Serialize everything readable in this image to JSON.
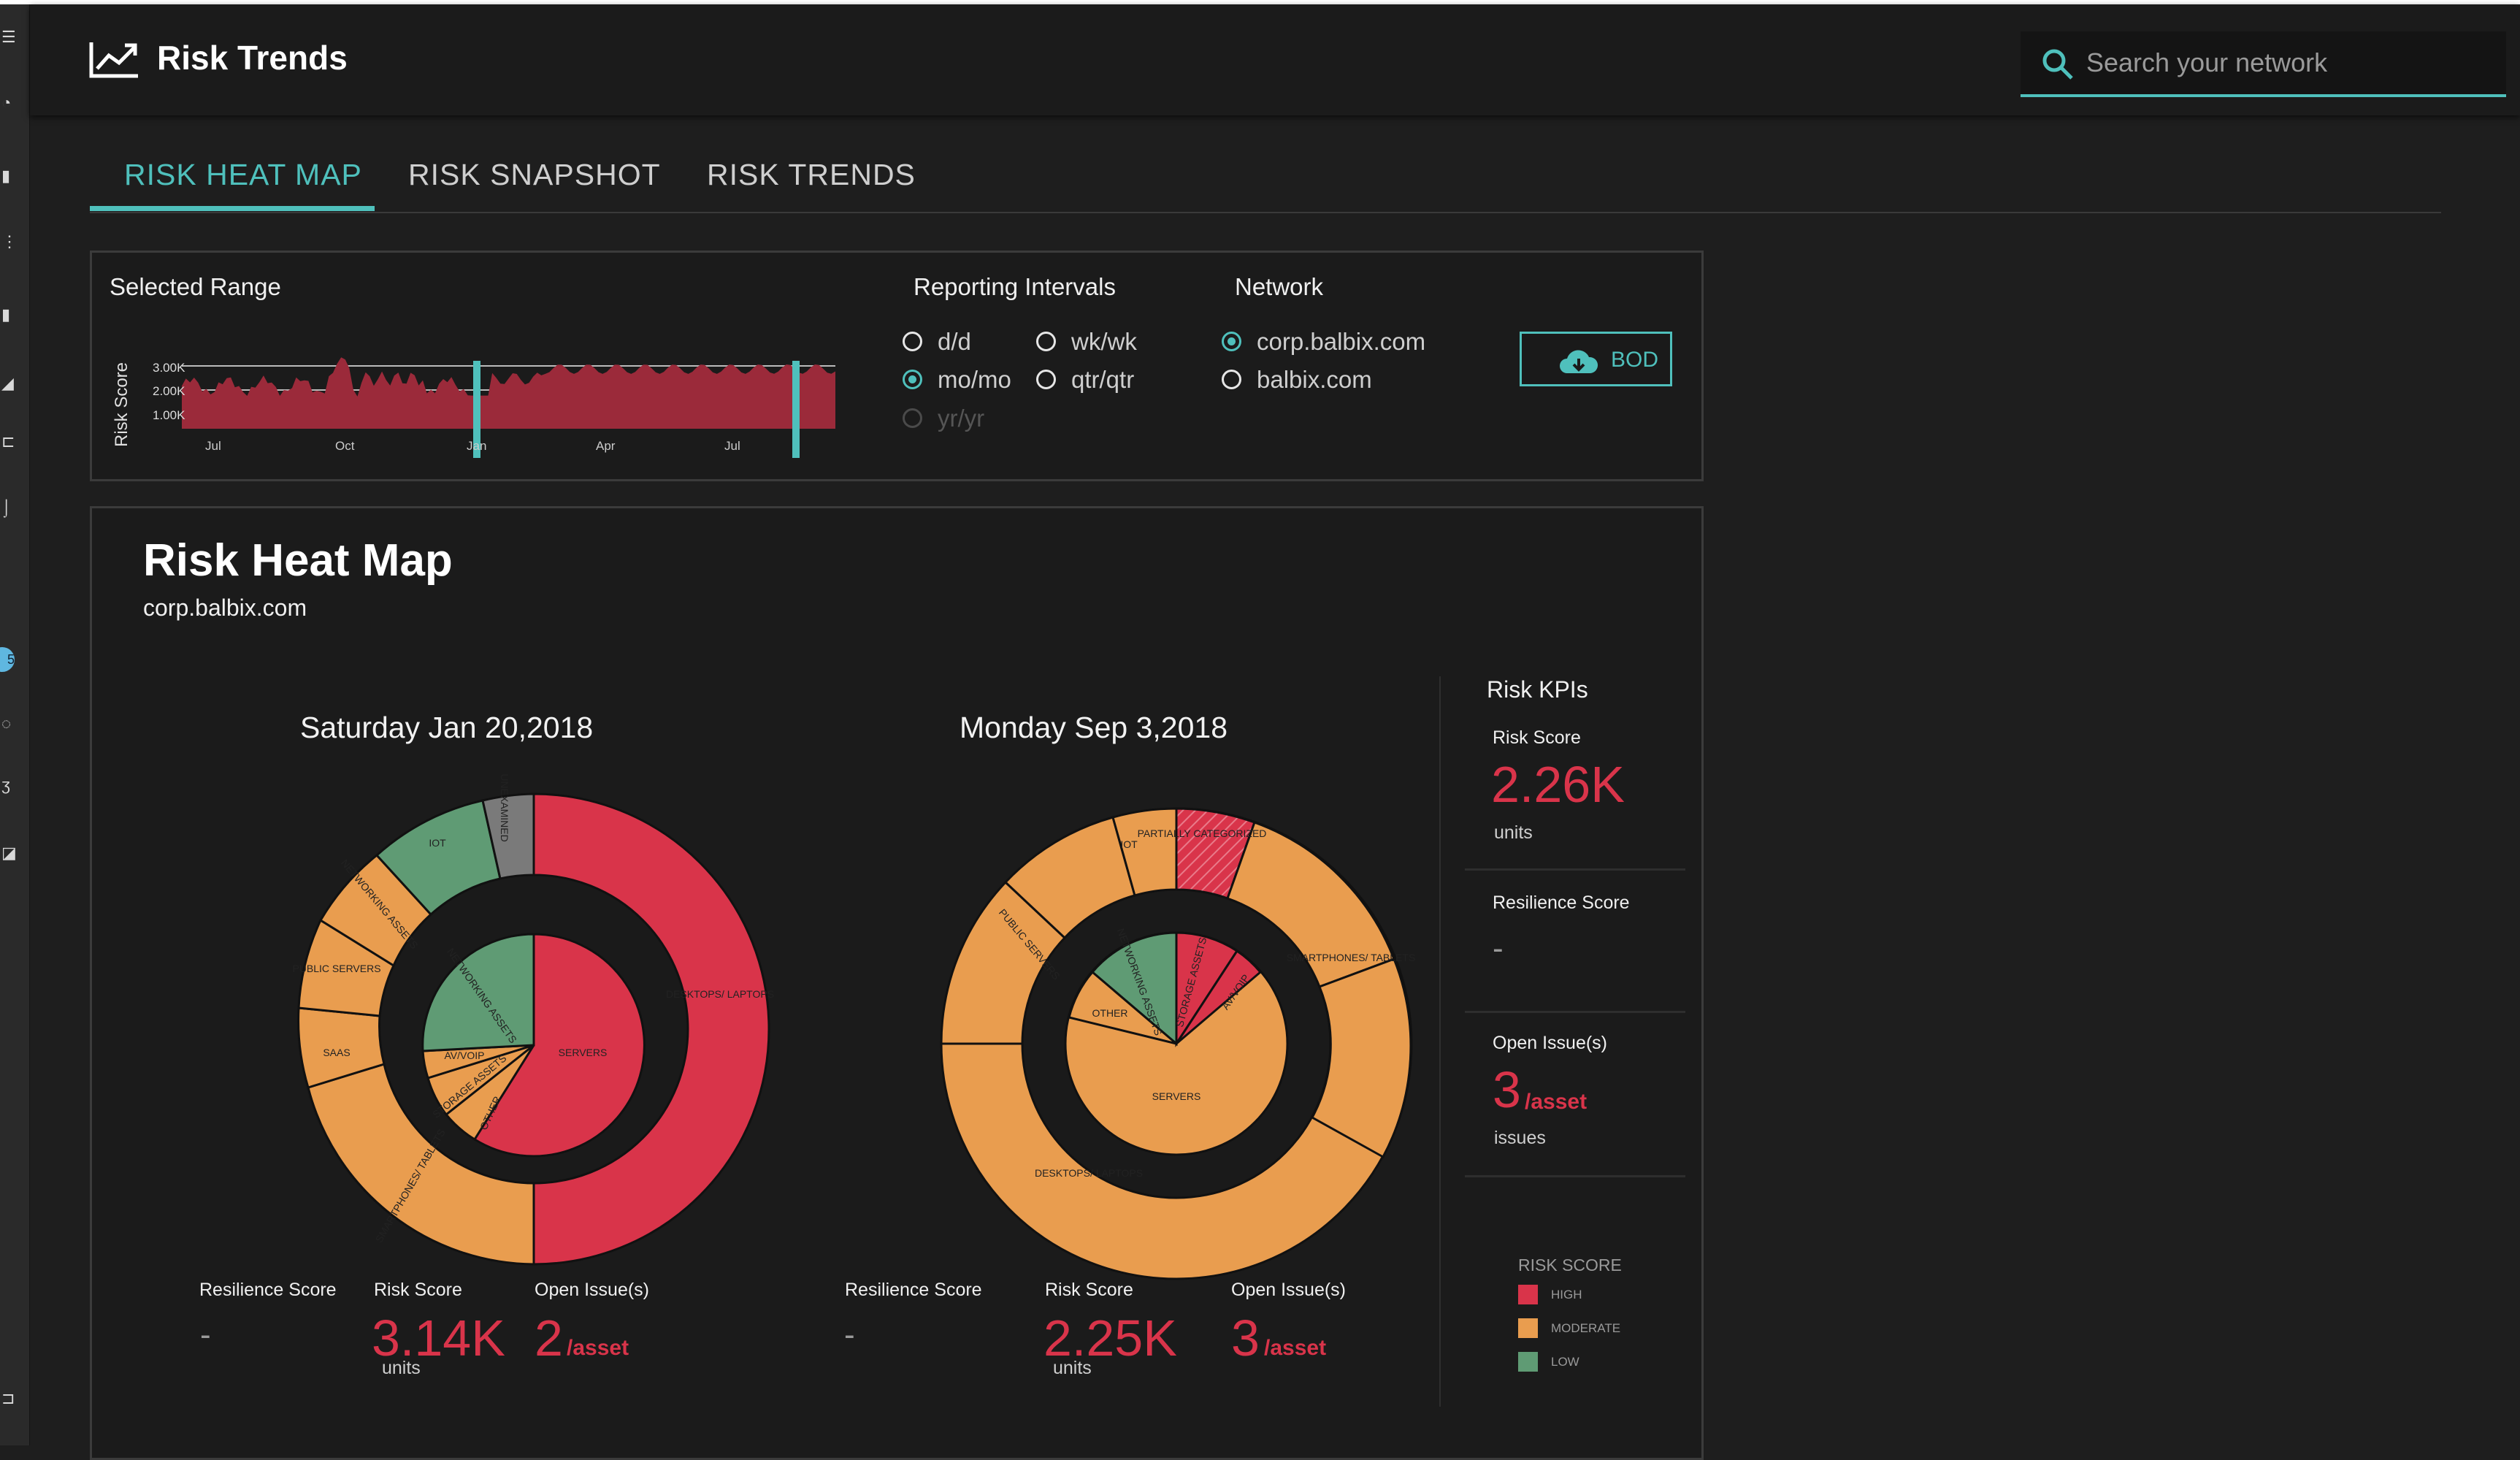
{
  "header": {
    "title": "Risk Trends",
    "search_placeholder": "Search your network"
  },
  "tabs": [
    {
      "label": "RISK HEAT MAP",
      "active": true
    },
    {
      "label": "RISK SNAPSHOT",
      "active": false
    },
    {
      "label": "RISK TRENDS",
      "active": false
    }
  ],
  "range_panel": {
    "selected_range_label": "Selected Range",
    "reporting_intervals_label": "Reporting Intervals",
    "network_label": "Network",
    "intervals": [
      {
        "label": "d/d",
        "selected": false,
        "disabled": false
      },
      {
        "label": "wk/wk",
        "selected": false,
        "disabled": false
      },
      {
        "label": "mo/mo",
        "selected": true,
        "disabled": false
      },
      {
        "label": "qtr/qtr",
        "selected": false,
        "disabled": false
      },
      {
        "label": "yr/yr",
        "selected": false,
        "disabled": true
      }
    ],
    "networks": [
      {
        "label": "corp.balbix.com",
        "selected": true
      },
      {
        "label": "balbix.com",
        "selected": false
      }
    ],
    "download_button": "BOD"
  },
  "chart_data": {
    "type": "area",
    "ylabel": "Risk Score",
    "y_ticks": [
      "1.00K",
      "2.00K",
      "3.00K"
    ],
    "x_ticks": [
      "Jul",
      "Oct",
      "Jan",
      "Apr",
      "Jul"
    ],
    "ylim": [
      0,
      3000
    ],
    "series_color": "#9b2a3a",
    "selection_start": "Jan",
    "selection_end": "Jul"
  },
  "heat_map": {
    "title": "Risk Heat Map",
    "subtitle": "corp.balbix.com",
    "snapshots": [
      {
        "date": "Saturday Jan 20,2018",
        "resilience_label": "Resilience Score",
        "resilience_value": "-",
        "risk_label": "Risk Score",
        "risk_value": "3.14K",
        "risk_unit": "units",
        "issues_label": "Open Issue(s)",
        "issues_value": "2",
        "issues_unit": "/asset"
      },
      {
        "date": "Monday Sep 3,2018",
        "resilience_label": "Resilience Score",
        "resilience_value": "-",
        "risk_label": "Risk Score",
        "risk_value": "2.25K",
        "risk_unit": "units",
        "issues_label": "Open Issue(s)",
        "issues_value": "3",
        "issues_unit": "/asset"
      }
    ]
  },
  "kpis": {
    "title": "Risk KPIs",
    "risk_score_label": "Risk Score",
    "risk_score_value": "2.26K",
    "risk_score_unit": "units",
    "resilience_label": "Resilience Score",
    "resilience_value": "-",
    "open_issues_label": "Open Issue(s)",
    "open_issues_value": "3",
    "open_issues_unit": "/asset",
    "open_issues_sub": "issues"
  },
  "legend": {
    "title": "RISK SCORE",
    "items": [
      {
        "label": "HIGH",
        "color": "#d9344a"
      },
      {
        "label": "MODERATE",
        "color": "#e99d4f"
      },
      {
        "label": "LOW",
        "color": "#5f9b74"
      }
    ]
  },
  "donut_labels_1": [
    "DESKTOPS/ LAPTOPS",
    "SMARTPHONES/ TABLETS",
    "SAAS",
    "PUBLIC SERVERS",
    "NETWORKING ASSETS",
    "IOT",
    "UNEXAMINED",
    "SERVERS",
    "AV/VOIP",
    "STORAGE ASSETS",
    "OTHER",
    "NETWORKING ASSETS"
  ],
  "donut_labels_2": [
    "PARTIALLY CATEGORIZED",
    "SMARTPHONES/ TABLETS",
    "DESKTOPS/ LAPTOPS",
    "PUBLIC SERVERS",
    "IOT",
    "SERVERS",
    "STORAGE ASSETS",
    "AV/VOIP",
    "OTHER",
    "NETWORKING ASSETS"
  ]
}
